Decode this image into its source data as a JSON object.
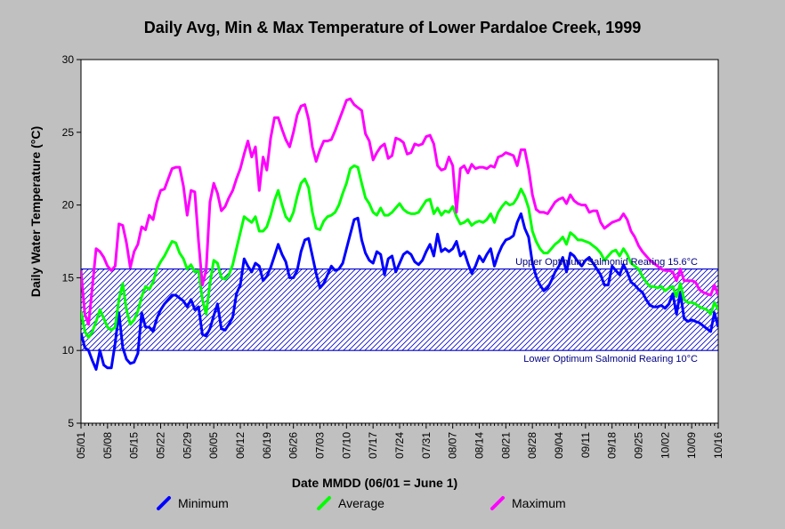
{
  "chart_data": {
    "type": "line",
    "title": "Daily Avg, Min & Max Temperature of Lower Pardaloe Creek, 1999",
    "xlabel": "Date MMDD (06/01 = June 1)",
    "ylabel": "Daily Water Temperature (°C)",
    "ylim": [
      5,
      30
    ],
    "yticks": [
      "5",
      "10",
      "15",
      "20",
      "25",
      "30"
    ],
    "ytick_values": [
      5,
      10,
      15,
      20,
      25,
      30
    ],
    "xlim": [
      "05/01",
      "10/16"
    ],
    "xtick_labels": [
      "05/01",
      "05/08",
      "05/15",
      "05/22",
      "05/29",
      "06/05",
      "06/12",
      "06/19",
      "06/26",
      "07/03",
      "07/10",
      "07/17",
      "07/24",
      "07/31",
      "08/07",
      "08/14",
      "08/21",
      "08/28",
      "09/04",
      "09/11",
      "09/18",
      "09/25",
      "10/02",
      "10/09",
      "10/16"
    ],
    "grid": false,
    "legend_position": "bottom",
    "band": {
      "lower": 10,
      "upper": 15.6,
      "upper_label": "Upper Optimum Salmonid Rearing 15.6°C",
      "lower_label": "Lower Optimum Salmonid Rearing 10°C",
      "color": "#0000cc"
    },
    "x_start_date": "05/01",
    "series": [
      {
        "name": "Minimum",
        "color": "#0000ff",
        "values": [
          11.2,
          10.2,
          10.0,
          9.3,
          8.7,
          10.0,
          9.0,
          8.8,
          8.8,
          10.5,
          12.6,
          10.2,
          9.4,
          9.1,
          9.2,
          9.8,
          12.6,
          11.6,
          11.6,
          11.3,
          12.2,
          12.8,
          13.2,
          13.5,
          13.8,
          13.8,
          13.6,
          13.4,
          13.0,
          13.5,
          12.8,
          13.0,
          11.1,
          11.0,
          11.5,
          12.4,
          13.2,
          11.5,
          11.4,
          11.8,
          12.3,
          13.9,
          14.5,
          16.3,
          15.8,
          15.4,
          16.0,
          15.8,
          14.8,
          15.1,
          15.7,
          16.5,
          17.3,
          16.6,
          16.1,
          15.0,
          15.0,
          15.5,
          16.8,
          17.6,
          17.7,
          16.5,
          15.3,
          14.3,
          14.6,
          15.2,
          15.8,
          15.5,
          15.6,
          16.0,
          17.0,
          18.0,
          19.0,
          19.1,
          17.6,
          16.7,
          16.2,
          16.0,
          16.8,
          16.6,
          15.2,
          16.3,
          16.5,
          15.4,
          16.0,
          16.6,
          16.8,
          16.6,
          16.1,
          15.9,
          16.2,
          16.8,
          17.3,
          16.5,
          18.0,
          16.8,
          17.0,
          16.8,
          17.0,
          17.5,
          16.5,
          16.8,
          16.0,
          15.3,
          15.8,
          16.5,
          16.1,
          16.6,
          17.0,
          15.8,
          16.6,
          17.2,
          17.6,
          17.7,
          17.9,
          18.8,
          19.4,
          18.4,
          17.8,
          16.0,
          15.1,
          14.5,
          14.1,
          14.3,
          14.8,
          15.4,
          15.8,
          16.4,
          15.4,
          16.7,
          16.5,
          16.1,
          15.8,
          16.2,
          16.4,
          16.0,
          15.6,
          15.2,
          14.5,
          14.5,
          15.8,
          15.5,
          15.2,
          15.9,
          15.4,
          14.7,
          14.5,
          14.2,
          14.0,
          13.5,
          13.1,
          13.0,
          13.0,
          13.1,
          12.9,
          13.2,
          13.9,
          12.5,
          14.0,
          12.2,
          12.0,
          12.1,
          12.0,
          11.9,
          11.7,
          11.5,
          11.3,
          12.6,
          11.6
        ]
      },
      {
        "name": "Average",
        "color": "#00ff00",
        "values": [
          12.7,
          11.3,
          10.9,
          11.3,
          12.0,
          12.8,
          12.2,
          11.6,
          11.4,
          11.6,
          13.5,
          14.6,
          12.8,
          11.8,
          12.1,
          12.7,
          13.7,
          14.4,
          14.2,
          14.7,
          15.6,
          16.1,
          16.5,
          17.0,
          17.5,
          17.4,
          16.7,
          16.3,
          15.6,
          15.9,
          15.4,
          15.5,
          13.5,
          12.5,
          14.6,
          16.2,
          16.0,
          15.0,
          14.9,
          15.2,
          15.9,
          17.0,
          18.1,
          19.2,
          19.0,
          18.8,
          19.2,
          18.2,
          18.2,
          18.5,
          19.3,
          20.3,
          21.0,
          20.0,
          19.2,
          18.9,
          19.5,
          20.6,
          21.5,
          21.8,
          21.2,
          19.5,
          18.4,
          18.3,
          18.9,
          19.2,
          19.3,
          19.5,
          20.0,
          20.8,
          21.5,
          22.5,
          22.7,
          22.6,
          21.5,
          20.5,
          20.1,
          19.5,
          19.3,
          19.8,
          19.3,
          19.3,
          19.5,
          19.8,
          20.1,
          19.7,
          19.5,
          19.4,
          19.4,
          19.5,
          19.9,
          20.3,
          20.4,
          19.4,
          19.8,
          19.3,
          19.6,
          19.5,
          19.9,
          19.2,
          18.7,
          18.8,
          19.0,
          18.6,
          18.8,
          18.9,
          18.8,
          19.0,
          19.4,
          18.8,
          19.5,
          19.9,
          20.2,
          20.0,
          20.1,
          20.5,
          21.1,
          20.6,
          19.8,
          18.2,
          17.5,
          17.0,
          16.7,
          16.7,
          17.0,
          17.3,
          17.5,
          17.8,
          17.3,
          18.1,
          17.9,
          17.6,
          17.6,
          17.5,
          17.4,
          17.2,
          17.0,
          16.7,
          16.2,
          16.5,
          16.8,
          16.9,
          16.5,
          17.0,
          16.6,
          16.0,
          15.8,
          15.6,
          15.1,
          14.7,
          14.4,
          14.4,
          14.3,
          14.4,
          14.1,
          14.3,
          14.4,
          13.7,
          14.6,
          13.5,
          13.3,
          13.3,
          13.2,
          13.0,
          12.9,
          12.8,
          12.5,
          13.3,
          12.8
        ]
      },
      {
        "name": "Maximum",
        "color": "#ff00ff",
        "values": [
          15.5,
          12.5,
          11.8,
          14.4,
          17.0,
          16.8,
          16.4,
          15.8,
          15.5,
          15.8,
          18.7,
          18.6,
          17.4,
          15.7,
          16.8,
          17.3,
          18.5,
          18.3,
          19.3,
          19.0,
          20.2,
          21.0,
          21.1,
          21.8,
          22.5,
          22.6,
          22.6,
          21.3,
          19.3,
          21.0,
          20.9,
          17.5,
          14.5,
          15.5,
          20.2,
          21.5,
          20.8,
          19.6,
          19.9,
          20.5,
          21.0,
          21.8,
          22.5,
          23.5,
          24.4,
          23.3,
          24.0,
          21.0,
          23.3,
          22.4,
          24.6,
          26.0,
          26.0,
          25.2,
          24.5,
          24.0,
          25.0,
          26.2,
          26.8,
          26.9,
          25.9,
          24.0,
          23.0,
          23.8,
          24.4,
          24.4,
          24.5,
          25.1,
          25.8,
          26.5,
          27.2,
          27.3,
          26.9,
          26.7,
          26.5,
          24.9,
          24.4,
          23.1,
          23.6,
          24.0,
          24.2,
          23.2,
          23.4,
          24.6,
          24.5,
          24.3,
          23.5,
          23.6,
          24.2,
          24.1,
          24.2,
          24.7,
          24.8,
          24.2,
          22.7,
          22.4,
          22.5,
          23.3,
          22.7,
          19.5,
          22.5,
          22.7,
          22.2,
          22.8,
          22.5,
          22.6,
          22.6,
          22.5,
          22.7,
          22.6,
          23.3,
          23.4,
          23.6,
          23.5,
          23.4,
          22.7,
          23.8,
          23.8,
          22.5,
          20.7,
          19.7,
          19.5,
          19.5,
          19.4,
          19.8,
          20.2,
          20.4,
          20.5,
          20.1,
          20.7,
          20.3,
          20.1,
          20.0,
          20.0,
          19.5,
          19.6,
          19.6,
          18.8,
          18.4,
          18.6,
          18.8,
          18.9,
          19.0,
          19.4,
          19.0,
          18.2,
          17.8,
          17.2,
          16.8,
          16.5,
          16.2,
          16.0,
          15.8,
          15.6,
          15.5,
          15.5,
          15.4,
          14.8,
          15.6,
          14.8,
          14.8,
          14.8,
          14.7,
          14.2,
          14.0,
          13.9,
          13.8,
          14.5,
          13.8
        ]
      }
    ]
  }
}
